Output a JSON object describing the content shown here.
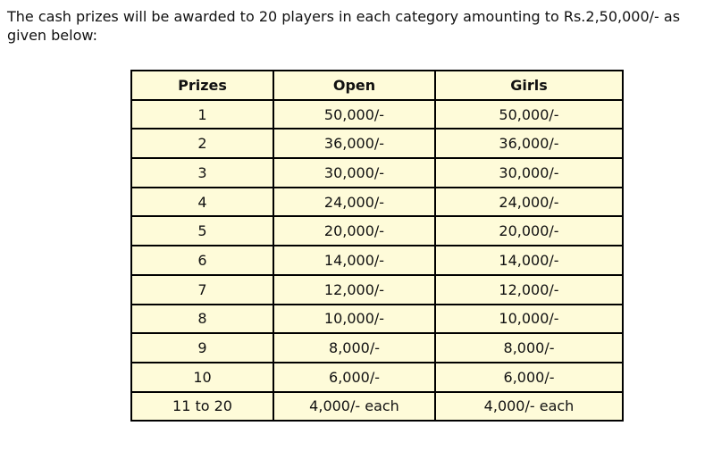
{
  "intro": "The cash prizes will be awarded to 20 players in each category amounting to Rs.2,50,000/- as given below:",
  "table": {
    "headers": [
      "Prizes",
      "Open",
      "Girls"
    ],
    "rows": [
      [
        "1",
        "50,000/-",
        "50,000/-"
      ],
      [
        "2",
        "36,000/-",
        "36,000/-"
      ],
      [
        "3",
        "30,000/-",
        "30,000/-"
      ],
      [
        "4",
        "24,000/-",
        "24,000/-"
      ],
      [
        "5",
        "20,000/-",
        "20,000/-"
      ],
      [
        "6",
        "14,000/-",
        "14,000/-"
      ],
      [
        "7",
        "12,000/-",
        "12,000/-"
      ],
      [
        "8",
        "10,000/-",
        "10,000/-"
      ],
      [
        "9",
        "8,000/-",
        "8,000/-"
      ],
      [
        "10",
        "6,000/-",
        "6,000/-"
      ],
      [
        "11 to 20",
        "4,000/- each",
        "4,000/- each"
      ]
    ]
  },
  "colors": {
    "table_bg": "#fefbd9",
    "border": "#000000"
  }
}
